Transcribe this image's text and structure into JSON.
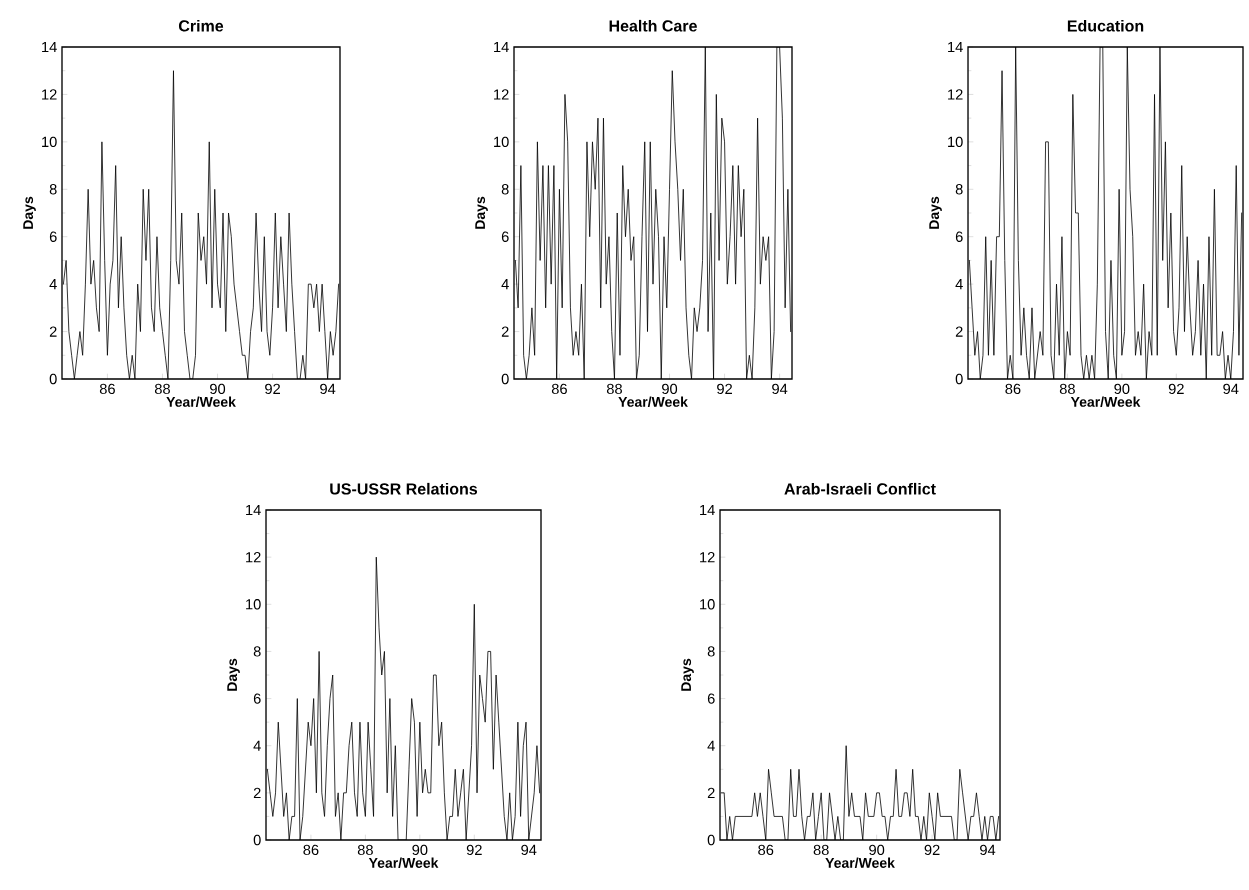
{
  "chart_data": [
    {
      "type": "line",
      "title": "Crime",
      "xlabel": "Year/Week",
      "ylabel": "Days",
      "color": "#000000",
      "xlim": [
        84.35,
        94.45
      ],
      "ylim": [
        0,
        14
      ],
      "xticks": [
        86,
        88,
        90,
        92,
        94
      ],
      "yticks": [
        0,
        2,
        4,
        6,
        8,
        10,
        12,
        14
      ],
      "x": [
        84.4,
        84.5,
        84.6,
        84.7,
        84.8,
        84.9,
        85,
        85.1,
        85.2,
        85.3,
        85.4,
        85.5,
        85.6,
        85.7,
        85.8,
        85.9,
        86,
        86.1,
        86.2,
        86.3,
        86.4,
        86.5,
        86.6,
        86.7,
        86.8,
        86.9,
        87,
        87.1,
        87.2,
        87.3,
        87.4,
        87.5,
        87.6,
        87.7,
        87.8,
        87.9,
        88,
        88.1,
        88.2,
        88.3,
        88.4,
        88.5,
        88.6,
        88.7,
        88.8,
        88.9,
        89,
        89.1,
        89.2,
        89.3,
        89.4,
        89.5,
        89.6,
        89.7,
        89.8,
        89.9,
        90,
        90.1,
        90.2,
        90.3,
        90.4,
        90.5,
        90.6,
        90.7,
        90.8,
        90.9,
        91,
        91.1,
        91.2,
        91.3,
        91.4,
        91.5,
        91.6,
        91.7,
        91.8,
        91.9,
        92,
        92.1,
        92.2,
        92.3,
        92.4,
        92.5,
        92.6,
        92.7,
        92.8,
        92.9,
        93,
        93.1,
        93.2,
        93.3,
        93.4,
        93.5,
        93.6,
        93.7,
        93.8,
        93.9,
        94,
        94.1,
        94.2,
        94.3,
        94.4
      ],
      "values": [
        4,
        5,
        2,
        1,
        0,
        1,
        2,
        1,
        4,
        8,
        4,
        5,
        3,
        2,
        10,
        5,
        1,
        4,
        5,
        9,
        3,
        6,
        3,
        1,
        0,
        1,
        0,
        4,
        2,
        8,
        5,
        8,
        3,
        2,
        6,
        3,
        2,
        1,
        0,
        5,
        13,
        5,
        4,
        7,
        2,
        1,
        0,
        0,
        1,
        7,
        5,
        6,
        4,
        10,
        3,
        8,
        4,
        3,
        7,
        2,
        7,
        6,
        4,
        3,
        2,
        1,
        1,
        0,
        2,
        3,
        7,
        4,
        2,
        6,
        2,
        1,
        3,
        7,
        3,
        6,
        4,
        2,
        7,
        4,
        2,
        0,
        0,
        1,
        0,
        4,
        4,
        3,
        4,
        2,
        4,
        2,
        0,
        2,
        1,
        2,
        4
      ]
    },
    {
      "type": "line",
      "title": "Health Care",
      "xlabel": "Year/Week",
      "ylabel": "Days",
      "color": "#000000",
      "xlim": [
        84.35,
        94.45
      ],
      "ylim": [
        0,
        14
      ],
      "xticks": [
        86,
        88,
        90,
        92,
        94
      ],
      "yticks": [
        0,
        2,
        4,
        6,
        8,
        10,
        12,
        14
      ],
      "x": [
        84.4,
        84.5,
        84.6,
        84.7,
        84.8,
        84.9,
        85,
        85.1,
        85.2,
        85.3,
        85.4,
        85.5,
        85.6,
        85.7,
        85.8,
        85.9,
        86,
        86.1,
        86.2,
        86.3,
        86.4,
        86.5,
        86.6,
        86.7,
        86.8,
        86.9,
        87,
        87.1,
        87.2,
        87.3,
        87.4,
        87.5,
        87.6,
        87.7,
        87.8,
        87.9,
        88,
        88.1,
        88.2,
        88.3,
        88.4,
        88.5,
        88.6,
        88.7,
        88.8,
        88.9,
        89,
        89.1,
        89.2,
        89.3,
        89.4,
        89.5,
        89.6,
        89.7,
        89.8,
        89.9,
        90,
        90.1,
        90.2,
        90.3,
        90.4,
        90.5,
        90.6,
        90.7,
        90.8,
        90.9,
        91,
        91.1,
        91.2,
        91.3,
        91.4,
        91.5,
        91.6,
        91.7,
        91.8,
        91.9,
        92,
        92.1,
        92.2,
        92.3,
        92.4,
        92.5,
        92.6,
        92.7,
        92.8,
        92.9,
        93,
        93.1,
        93.2,
        93.3,
        93.4,
        93.5,
        93.6,
        93.7,
        93.8,
        93.9,
        94,
        94.1,
        94.2,
        94.3,
        94.4
      ],
      "values": [
        5,
        3,
        9,
        1,
        0,
        1,
        3,
        1,
        10,
        5,
        9,
        3,
        9,
        4,
        9,
        0,
        8,
        3,
        12,
        10,
        3,
        1,
        2,
        1,
        4,
        0,
        10,
        6,
        10,
        8,
        11,
        3,
        11,
        4,
        6,
        2,
        0,
        7,
        1,
        9,
        6,
        8,
        5,
        6,
        0,
        1,
        6,
        10,
        2,
        10,
        4,
        8,
        6,
        0,
        6,
        3,
        8,
        13,
        10,
        8,
        5,
        8,
        3,
        1,
        0,
        3,
        2,
        3,
        5,
        14,
        2,
        7,
        0,
        12,
        5,
        11,
        10,
        4,
        6,
        9,
        4,
        9,
        6,
        8,
        0,
        1,
        0,
        3,
        11,
        4,
        6,
        5,
        6,
        0,
        2,
        14,
        14,
        11,
        3,
        8,
        2
      ]
    },
    {
      "type": "line",
      "title": "Education",
      "xlabel": "Year/Week",
      "ylabel": "Days",
      "color": "#000000",
      "xlim": [
        84.35,
        94.45
      ],
      "ylim": [
        0,
        14
      ],
      "xticks": [
        86,
        88,
        90,
        92,
        94
      ],
      "yticks": [
        0,
        2,
        4,
        6,
        8,
        10,
        12,
        14
      ],
      "x": [
        84.4,
        84.5,
        84.6,
        84.7,
        84.8,
        84.9,
        85,
        85.1,
        85.2,
        85.3,
        85.4,
        85.5,
        85.6,
        85.7,
        85.8,
        85.9,
        86,
        86.1,
        86.2,
        86.3,
        86.4,
        86.5,
        86.6,
        86.7,
        86.8,
        86.9,
        87,
        87.1,
        87.2,
        87.3,
        87.4,
        87.5,
        87.6,
        87.7,
        87.8,
        87.9,
        88,
        88.1,
        88.2,
        88.3,
        88.4,
        88.5,
        88.6,
        88.7,
        88.8,
        88.9,
        89,
        89.1,
        89.2,
        89.3,
        89.4,
        89.5,
        89.6,
        89.7,
        89.8,
        89.9,
        90,
        90.1,
        90.2,
        90.3,
        90.4,
        90.5,
        90.6,
        90.7,
        90.8,
        90.9,
        91,
        91.1,
        91.2,
        91.3,
        91.4,
        91.5,
        91.6,
        91.7,
        91.8,
        91.9,
        92,
        92.1,
        92.2,
        92.3,
        92.4,
        92.5,
        92.6,
        92.7,
        92.8,
        92.9,
        93,
        93.1,
        93.2,
        93.3,
        93.4,
        93.5,
        93.6,
        93.7,
        93.8,
        93.9,
        94,
        94.1,
        94.2,
        94.3,
        94.4
      ],
      "values": [
        5,
        3,
        1,
        2,
        0,
        1,
        6,
        1,
        5,
        1,
        6,
        6,
        13,
        5,
        0,
        1,
        0,
        14,
        5,
        1,
        3,
        1,
        0,
        3,
        0,
        1,
        2,
        1,
        10,
        10,
        1,
        0,
        4,
        1,
        6,
        0,
        2,
        1,
        12,
        7,
        7,
        1,
        0,
        1,
        0,
        1,
        0,
        4,
        14,
        14,
        2,
        0,
        5,
        1,
        0,
        8,
        1,
        2,
        14,
        8,
        6,
        1,
        2,
        1,
        4,
        0,
        2,
        1,
        12,
        1,
        14,
        5,
        10,
        3,
        7,
        2,
        1,
        3,
        9,
        2,
        6,
        3,
        1,
        2,
        5,
        1,
        4,
        0,
        6,
        1,
        8,
        1,
        1,
        2,
        0,
        1,
        0,
        2,
        9,
        1,
        7
      ]
    },
    {
      "type": "line",
      "title": "US-USSR Relations",
      "xlabel": "Year/Week",
      "ylabel": "Days",
      "color": "#000000",
      "xlim": [
        84.35,
        94.45
      ],
      "ylim": [
        0,
        14
      ],
      "xticks": [
        86,
        88,
        90,
        92,
        94
      ],
      "yticks": [
        0,
        2,
        4,
        6,
        8,
        10,
        12,
        14
      ],
      "x": [
        84.4,
        84.5,
        84.6,
        84.7,
        84.8,
        84.9,
        85,
        85.1,
        85.2,
        85.3,
        85.4,
        85.5,
        85.6,
        85.7,
        85.8,
        85.9,
        86,
        86.1,
        86.2,
        86.3,
        86.4,
        86.5,
        86.6,
        86.7,
        86.8,
        86.9,
        87,
        87.1,
        87.2,
        87.3,
        87.4,
        87.5,
        87.6,
        87.7,
        87.8,
        87.9,
        88,
        88.1,
        88.2,
        88.3,
        88.4,
        88.5,
        88.6,
        88.7,
        88.8,
        88.9,
        89,
        89.1,
        89.2,
        89.3,
        89.4,
        89.5,
        89.6,
        89.7,
        89.8,
        89.9,
        90,
        90.1,
        90.2,
        90.3,
        90.4,
        90.5,
        90.6,
        90.7,
        90.8,
        90.9,
        91,
        91.1,
        91.2,
        91.3,
        91.4,
        91.5,
        91.6,
        91.7,
        91.8,
        91.9,
        92,
        92.1,
        92.2,
        92.3,
        92.4,
        92.5,
        92.6,
        92.7,
        92.8,
        92.9,
        93,
        93.1,
        93.2,
        93.3,
        93.4,
        93.5,
        93.6,
        93.7,
        93.8,
        93.9,
        94,
        94.1,
        94.2,
        94.3,
        94.4
      ],
      "values": [
        3,
        2,
        1,
        2,
        5,
        3,
        1,
        2,
        0,
        1,
        1,
        6,
        0,
        1,
        3,
        5,
        4,
        6,
        2,
        8,
        2,
        1,
        4,
        6,
        7,
        1,
        2,
        0,
        2,
        2,
        4,
        5,
        2,
        1,
        5,
        2,
        1,
        5,
        3,
        1,
        12,
        9,
        7,
        8,
        2,
        6,
        1,
        4,
        0,
        0,
        0,
        0,
        3,
        6,
        5,
        1,
        5,
        2,
        3,
        2,
        2,
        7,
        7,
        4,
        5,
        2,
        0,
        1,
        1,
        3,
        1,
        2,
        3,
        0,
        2,
        4,
        10,
        2,
        7,
        6,
        5,
        8,
        8,
        3,
        7,
        5,
        3,
        1,
        0,
        2,
        0,
        1,
        5,
        1,
        4,
        5,
        0,
        1,
        2,
        4,
        2
      ]
    },
    {
      "type": "line",
      "title": "Arab-Israeli Conflict",
      "xlabel": "Year/Week",
      "ylabel": "Days",
      "color": "#000000",
      "xlim": [
        84.35,
        94.45
      ],
      "ylim": [
        0,
        14
      ],
      "xticks": [
        86,
        88,
        90,
        92,
        94
      ],
      "yticks": [
        0,
        2,
        4,
        6,
        8,
        10,
        12,
        14
      ],
      "x": [
        84.4,
        84.5,
        84.6,
        84.7,
        84.8,
        84.9,
        85,
        85.1,
        85.2,
        85.3,
        85.4,
        85.5,
        85.6,
        85.7,
        85.8,
        85.9,
        86,
        86.1,
        86.2,
        86.3,
        86.4,
        86.5,
        86.6,
        86.7,
        86.8,
        86.9,
        87,
        87.1,
        87.2,
        87.3,
        87.4,
        87.5,
        87.6,
        87.7,
        87.8,
        87.9,
        88,
        88.1,
        88.2,
        88.3,
        88.4,
        88.5,
        88.6,
        88.7,
        88.8,
        88.9,
        89,
        89.1,
        89.2,
        89.3,
        89.4,
        89.5,
        89.6,
        89.7,
        89.8,
        89.9,
        90,
        90.1,
        90.2,
        90.3,
        90.4,
        90.5,
        90.6,
        90.7,
        90.8,
        90.9,
        91,
        91.1,
        91.2,
        91.3,
        91.4,
        91.5,
        91.6,
        91.7,
        91.8,
        91.9,
        92,
        92.1,
        92.2,
        92.3,
        92.4,
        92.5,
        92.6,
        92.7,
        92.8,
        92.9,
        93,
        93.1,
        93.2,
        93.3,
        93.4,
        93.5,
        93.6,
        93.7,
        93.8,
        93.9,
        94,
        94.1,
        94.2,
        94.3,
        94.4
      ],
      "values": [
        2,
        2,
        0,
        1,
        0,
        1,
        1,
        1,
        1,
        1,
        1,
        1,
        2,
        1,
        2,
        1,
        0,
        3,
        2,
        1,
        1,
        1,
        1,
        0,
        0,
        3,
        1,
        1,
        3,
        1,
        0,
        1,
        1,
        2,
        0,
        1,
        2,
        0,
        0,
        2,
        1,
        0,
        1,
        0,
        0,
        4,
        1,
        2,
        1,
        1,
        1,
        0,
        2,
        1,
        1,
        1,
        2,
        2,
        1,
        1,
        0,
        1,
        1,
        3,
        1,
        1,
        2,
        2,
        1,
        3,
        1,
        1,
        0,
        1,
        0,
        2,
        1,
        0,
        2,
        1,
        1,
        1,
        1,
        1,
        0,
        0,
        3,
        2,
        1,
        0,
        1,
        1,
        2,
        1,
        0,
        1,
        0,
        1,
        1,
        0,
        1
      ]
    }
  ]
}
